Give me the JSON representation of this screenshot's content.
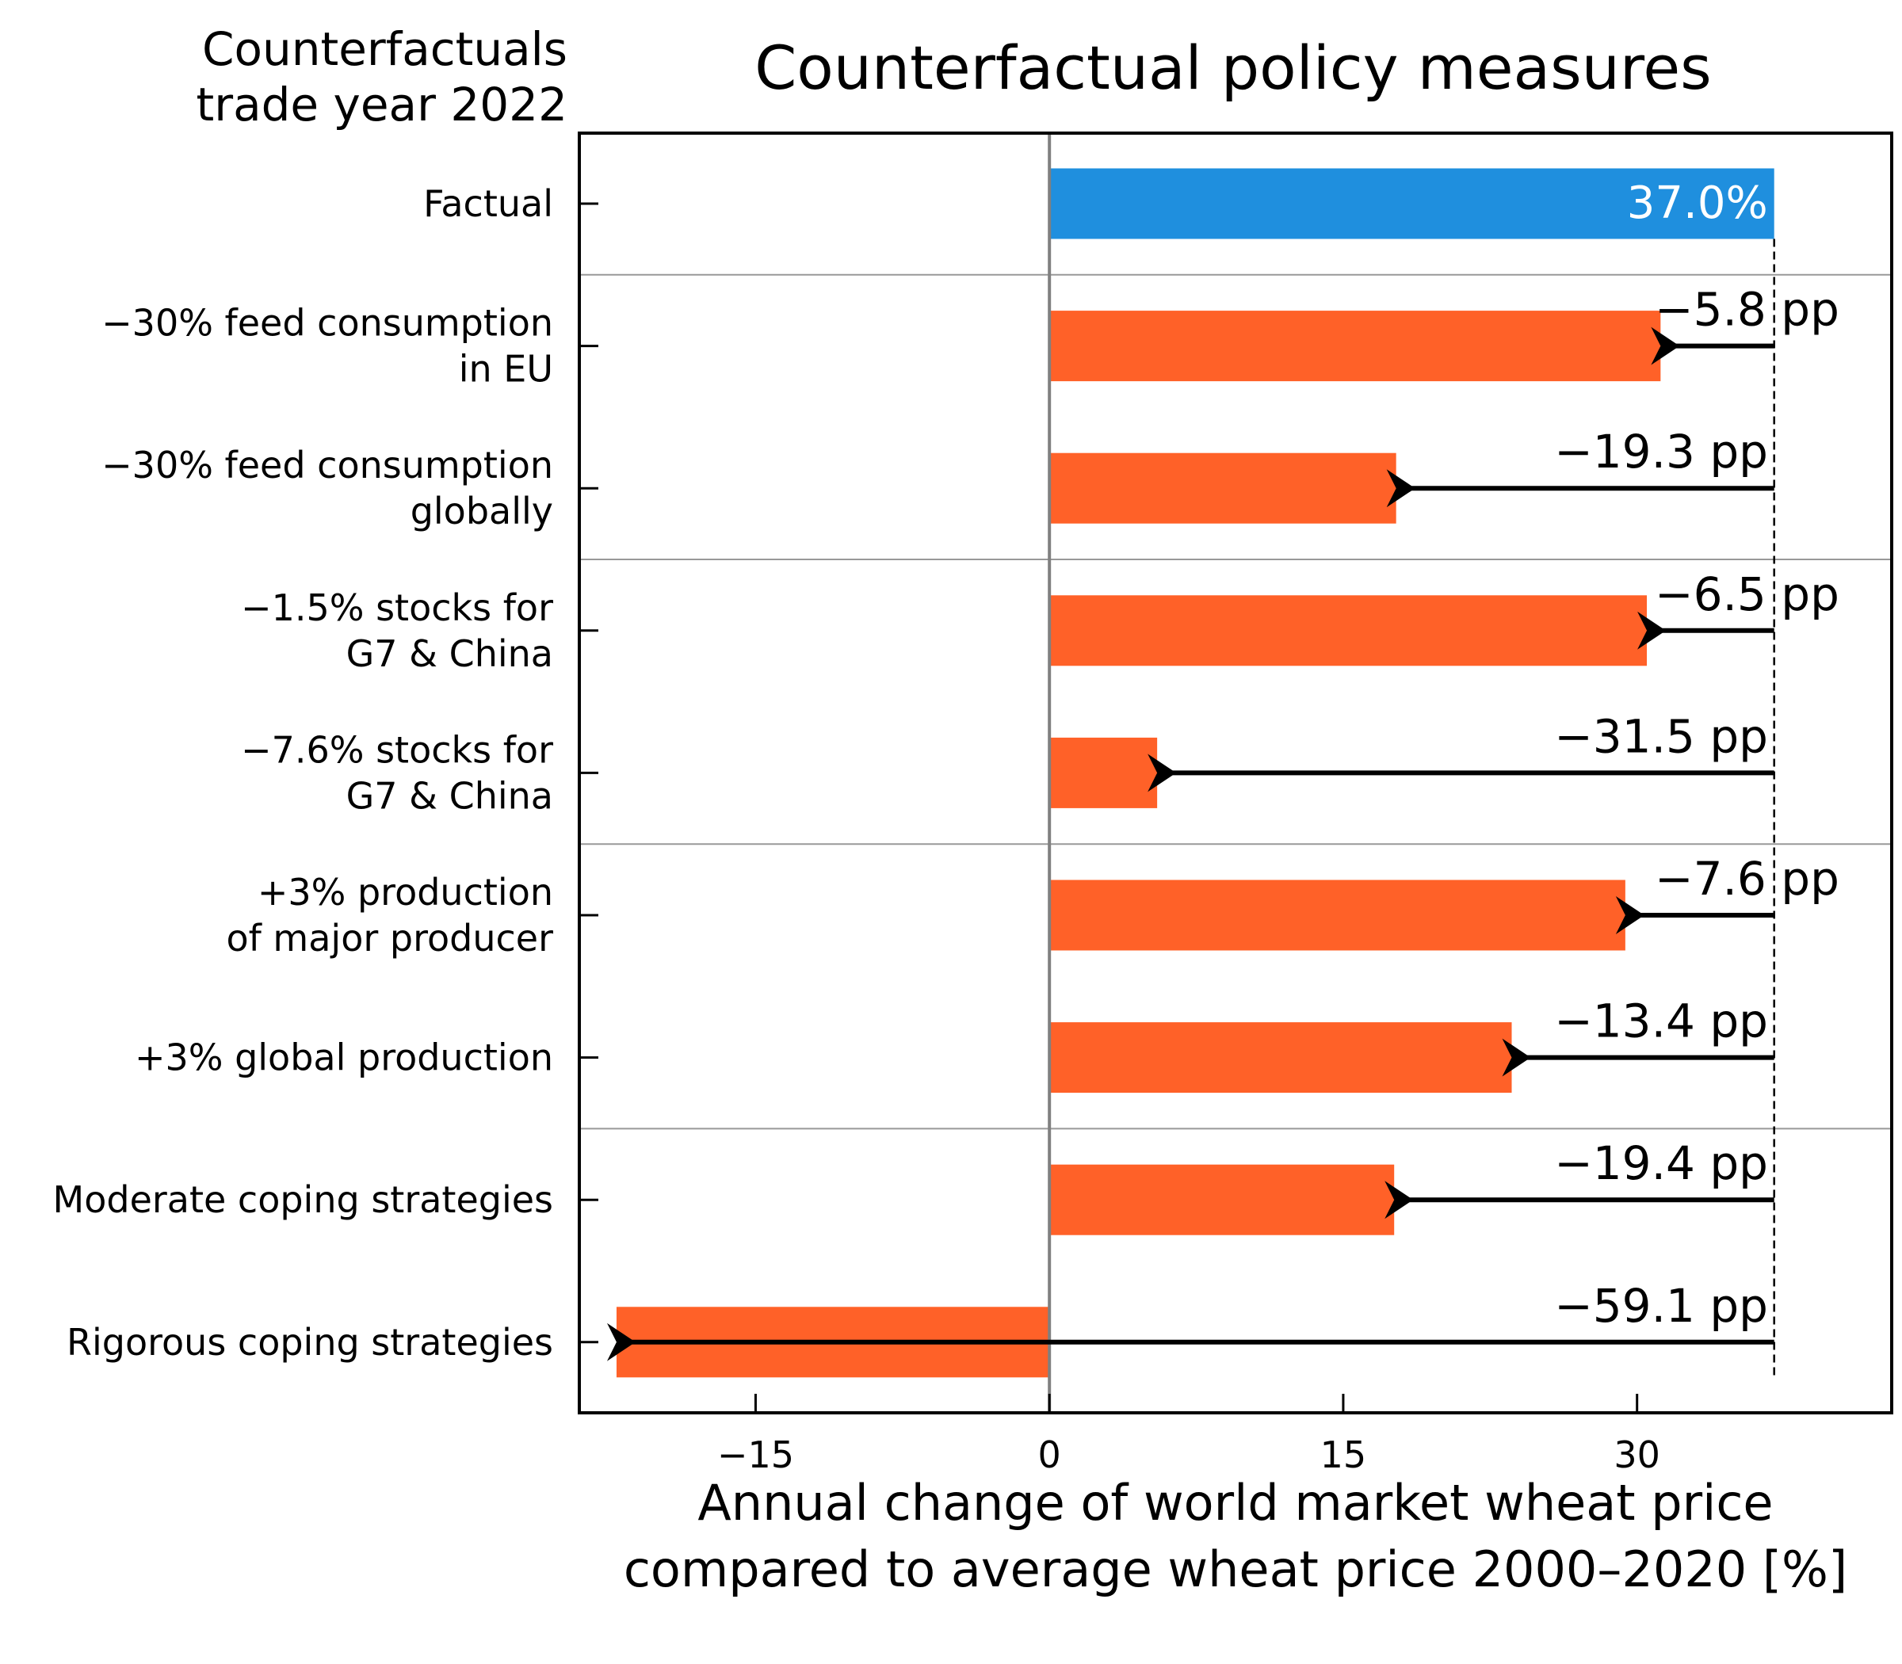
{
  "chart_data": {
    "type": "bar",
    "orientation": "horizontal",
    "title": "Counterfactual policy measures",
    "corner_label": [
      "Counterfactuals",
      "trade year 2022"
    ],
    "xlabel": [
      "Annual change of world market wheat price",
      "compared to average wheat price 2000–2020 [%]"
    ],
    "ylabel": "",
    "xlim": [
      -24,
      43
    ],
    "xticks": [
      -15,
      0,
      15,
      30
    ],
    "xtick_labels": [
      "−15",
      "0",
      "15",
      "30"
    ],
    "grid": false,
    "factual": {
      "label": [
        "Factual"
      ],
      "value": 37.0,
      "value_label": "37.0%"
    },
    "categories": [
      {
        "label": [
          "−30% feed consumption",
          "in EU"
        ],
        "delta": -5.8,
        "value": 31.2,
        "delta_label": "−5.8 pp"
      },
      {
        "label": [
          "−30% feed consumption",
          "globally"
        ],
        "delta": -19.3,
        "value": 17.7,
        "delta_label": "−19.3 pp"
      },
      {
        "label": [
          "−1.5% stocks for",
          "G7 & China"
        ],
        "delta": -6.5,
        "value": 30.5,
        "delta_label": "−6.5 pp"
      },
      {
        "label": [
          "−7.6% stocks for",
          "G7 & China"
        ],
        "delta": -31.5,
        "value": 5.5,
        "delta_label": "−31.5 pp"
      },
      {
        "label": [
          "+3% production",
          "of major producer"
        ],
        "delta": -7.6,
        "value": 29.4,
        "delta_label": "−7.6 pp"
      },
      {
        "label": [
          "+3% global production"
        ],
        "delta": -13.4,
        "value": 23.6,
        "delta_label": "−13.4 pp"
      },
      {
        "label": [
          "Moderate coping strategies"
        ],
        "delta": -19.4,
        "value": 17.6,
        "delta_label": "−19.4 pp"
      },
      {
        "label": [
          "Rigorous coping strategies"
        ],
        "delta": -59.1,
        "value": -22.1,
        "delta_label": "−59.1 pp"
      }
    ],
    "group_separators_after_rows": [
      0,
      2,
      4,
      6
    ],
    "colors": {
      "factual": "#1f8fde",
      "counterfactual": "#ff6128",
      "arrow": "#000000",
      "zero_line": "#808080",
      "separator": "#999999"
    }
  }
}
